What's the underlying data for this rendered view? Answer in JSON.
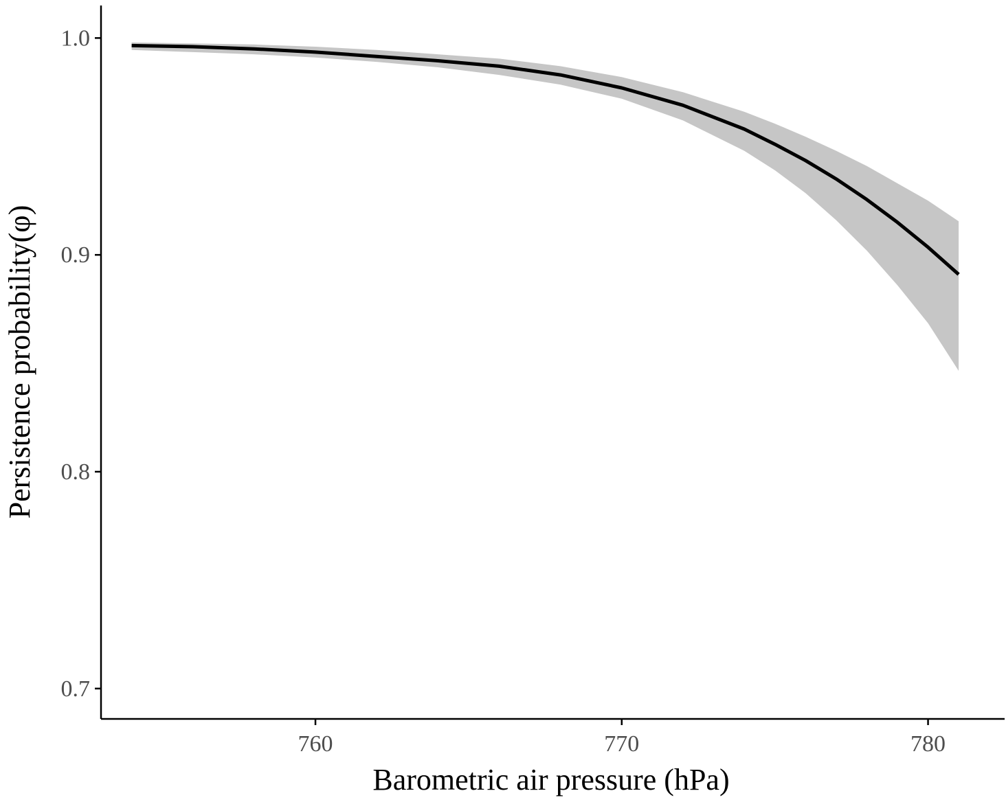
{
  "chart_data": {
    "type": "line",
    "title": "",
    "xlabel": "Barometric air pressure (hPa)",
    "ylabel": "Persistence probability(φ)",
    "xlim": [
      753,
      782.5
    ],
    "ylim": [
      0.686,
      1.015
    ],
    "xticks": [
      760,
      770,
      780
    ],
    "xtick_labels": [
      "760",
      "770",
      "780"
    ],
    "yticks": [
      0.7,
      0.8,
      0.9,
      1.0
    ],
    "ytick_labels": [
      "0.7",
      "0.8",
      "0.9",
      "1.0"
    ],
    "grid": false,
    "legend": "none",
    "series": [
      {
        "x": [
          754,
          756,
          758,
          760,
          762,
          764,
          766,
          768,
          770,
          772,
          774,
          775,
          776,
          777,
          778,
          779,
          780,
          781
        ],
        "y": [
          0.9965,
          0.996,
          0.995,
          0.9935,
          0.9915,
          0.9895,
          0.987,
          0.983,
          0.977,
          0.969,
          0.958,
          0.951,
          0.9435,
          0.935,
          0.9255,
          0.915,
          0.9035,
          0.891
        ],
        "lower": [
          0.9945,
          0.9935,
          0.9925,
          0.991,
          0.989,
          0.9865,
          0.983,
          0.9785,
          0.972,
          0.962,
          0.948,
          0.939,
          0.9285,
          0.916,
          0.902,
          0.886,
          0.8685,
          0.8465
        ],
        "upper": [
          0.998,
          0.9975,
          0.997,
          0.996,
          0.9945,
          0.9925,
          0.9905,
          0.987,
          0.982,
          0.975,
          0.966,
          0.9605,
          0.9545,
          0.948,
          0.941,
          0.933,
          0.925,
          0.9155
        ]
      }
    ],
    "colors": {
      "line": "#000000",
      "ribbon": "#c6c6c6",
      "axis": "#000000",
      "tick_text": "#4d4d4d"
    }
  }
}
